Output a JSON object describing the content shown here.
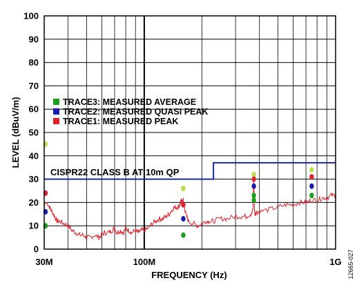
{
  "chart_data": {
    "type": "line",
    "title": "",
    "xlabel": "FREQUENCY (Hz)",
    "ylabel": "LEVEL (dBuV/m)",
    "x_scale": "log",
    "xlim": [
      30,
      1000
    ],
    "ylim": [
      0,
      100
    ],
    "x_ticks": [
      30,
      100,
      1000
    ],
    "x_tick_labels": [
      "30M",
      "100M",
      "1G"
    ],
    "y_ticks": [
      0,
      10,
      20,
      30,
      40,
      50,
      60,
      70,
      80,
      90,
      100
    ],
    "y_tick_labels": [
      "0",
      "10",
      "20",
      "30",
      "40",
      "50",
      "60",
      "70",
      "80",
      "90",
      "100"
    ],
    "grid": true,
    "legend_position": "middle-left",
    "legend": [
      {
        "label": "TRACE3: MEASURED AVERAGE",
        "color": "#1aa01a"
      },
      {
        "label": "TRACE2: MEASURED QUASI PEAK",
        "color": "#1a1ab4"
      },
      {
        "label": "TRACE1: MEASURED PEAK",
        "color": "#e0202a"
      }
    ],
    "limit_line": {
      "label": "CISPR22 CLASS B AT 10m QP",
      "color": "#1a2aa0",
      "segments": [
        {
          "x": [
            30,
            230
          ],
          "y": 30
        },
        {
          "x": [
            230,
            1000
          ],
          "y": 37
        }
      ]
    },
    "trace": {
      "color": "#e0202a",
      "x": [
        30,
        31,
        32,
        33,
        34,
        35,
        36,
        38,
        40,
        42,
        44,
        46,
        48,
        50,
        52,
        55,
        58,
        60,
        62,
        65,
        68,
        70,
        72,
        75,
        78,
        80,
        83,
        86,
        90,
        93,
        96,
        100,
        105,
        110,
        115,
        120,
        125,
        130,
        135,
        140,
        145,
        150,
        153,
        155,
        157,
        158,
        159,
        160,
        161,
        162,
        165,
        170,
        180,
        190,
        200,
        210,
        220,
        230,
        250,
        270,
        300,
        320,
        340,
        360,
        370,
        373,
        375,
        377,
        380,
        385,
        400,
        450,
        500,
        550,
        600,
        650,
        700,
        750,
        800,
        850,
        900,
        950,
        1000
      ],
      "y": [
        19,
        20,
        18,
        16,
        14,
        12,
        12,
        11,
        10,
        8,
        7,
        6,
        6,
        5,
        5,
        6,
        5,
        6,
        7,
        7,
        8,
        9,
        7,
        8,
        7,
        9,
        8,
        7,
        8,
        7,
        8,
        8,
        9,
        11,
        12,
        13,
        13,
        14,
        15,
        17,
        18,
        18,
        19,
        20,
        21,
        20,
        19,
        21,
        19,
        18,
        15,
        12,
        11,
        10,
        11,
        12,
        12,
        12,
        13,
        13,
        14,
        14,
        14,
        15,
        17,
        30,
        24,
        16,
        15,
        16,
        16,
        17,
        18,
        19,
        19,
        20,
        20,
        21,
        21,
        22,
        22,
        23,
        23
      ]
    },
    "markers": [
      {
        "series": "TRACE3: MEASURED AVERAGE",
        "x": 30.5,
        "y": 45,
        "color": "#b8e04a"
      },
      {
        "series": "TRACE1: MEASURED PEAK",
        "x": 30.5,
        "y": 24,
        "color": "#e0202a"
      },
      {
        "series": "TRACE2: MEASURED QUASI PEAK",
        "x": 30.5,
        "y": 16,
        "color": "#1a1ab4"
      },
      {
        "series": "TRACE3: MEASURED AVERAGE",
        "x": 30.5,
        "y": 10,
        "color": "#1aa01a"
      },
      {
        "series": "TRACE3: MEASURED AVERAGE",
        "x": 160,
        "y": 26,
        "color": "#b8e04a"
      },
      {
        "series": "TRACE1: MEASURED PEAK",
        "x": 160,
        "y": 19,
        "color": "#e0202a"
      },
      {
        "series": "TRACE2: MEASURED QUASI PEAK",
        "x": 160,
        "y": 13,
        "color": "#1a1ab4"
      },
      {
        "series": "TRACE3: MEASURED AVERAGE",
        "x": 160,
        "y": 6,
        "color": "#1aa01a"
      },
      {
        "series": "TRACE3: MEASURED AVERAGE",
        "x": 374,
        "y": 32,
        "color": "#b8e04a"
      },
      {
        "series": "TRACE1: MEASURED PEAK",
        "x": 374,
        "y": 30,
        "color": "#e0202a"
      },
      {
        "series": "TRACE2: MEASURED QUASI PEAK",
        "x": 374,
        "y": 27,
        "color": "#1a1ab4"
      },
      {
        "series": "TRACE3: MEASURED AVERAGE",
        "x": 374,
        "y": 23,
        "color": "#1aa01a"
      },
      {
        "series": "TRACE3: MEASURED AVERAGE",
        "x": 374,
        "y": 21,
        "color": "#1aa01a"
      },
      {
        "series": "TRACE3: MEASURED AVERAGE",
        "x": 750,
        "y": 34,
        "color": "#b8e04a"
      },
      {
        "series": "TRACE1: MEASURED PEAK",
        "x": 750,
        "y": 31,
        "color": "#e0202a"
      },
      {
        "series": "TRACE2: MEASURED QUASI PEAK",
        "x": 750,
        "y": 27,
        "color": "#1a1ab4"
      },
      {
        "series": "TRACE3: MEASURED AVERAGE",
        "x": 750,
        "y": 23,
        "color": "#1aa01a"
      }
    ],
    "figure_id": "12665-027"
  }
}
